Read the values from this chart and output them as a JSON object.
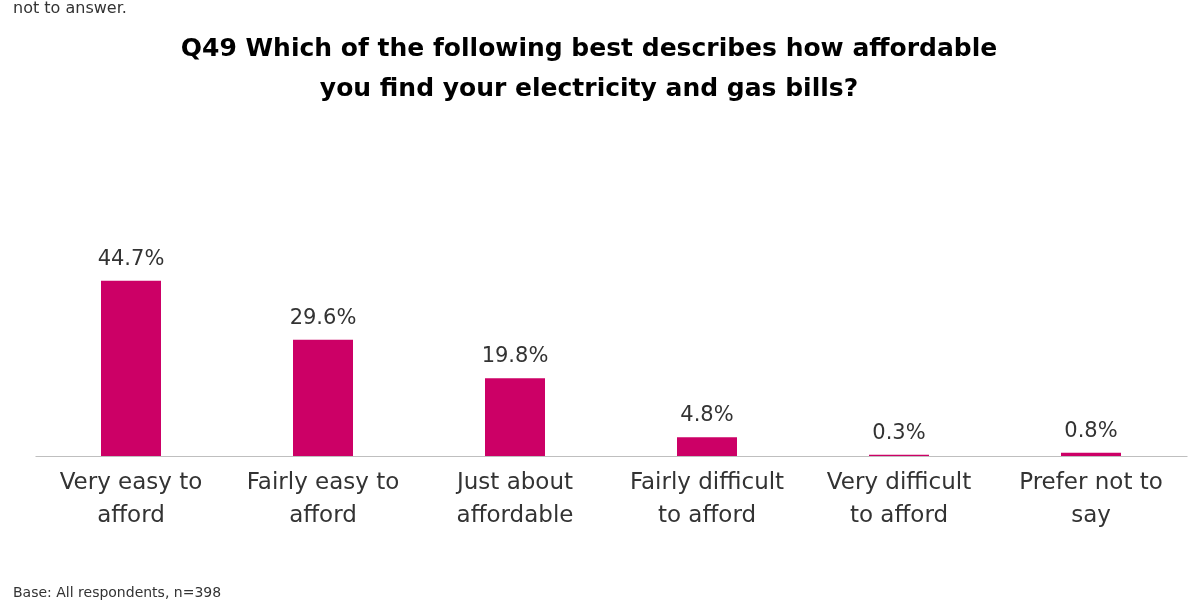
{
  "chart_data": {
    "type": "bar",
    "title": "Q49 Which of the following best describes how affordable\nyou find your electricity and gas bills?",
    "categories": [
      "Very easy to afford",
      "Fairly easy to afford",
      "Just about affordable",
      "Fairly difficult to afford",
      "Very difficult to afford",
      "Prefer not to say"
    ],
    "values": [
      44.7,
      29.6,
      19.8,
      4.8,
      0.3,
      0.8
    ],
    "value_labels": [
      "44.7%",
      "29.6%",
      "19.8%",
      "4.8%",
      "0.3%",
      "0.8%"
    ],
    "color": "#cc0066",
    "grid": false,
    "annotations": [
      "not to answer.",
      "Base: All respondents, n=398"
    ]
  }
}
